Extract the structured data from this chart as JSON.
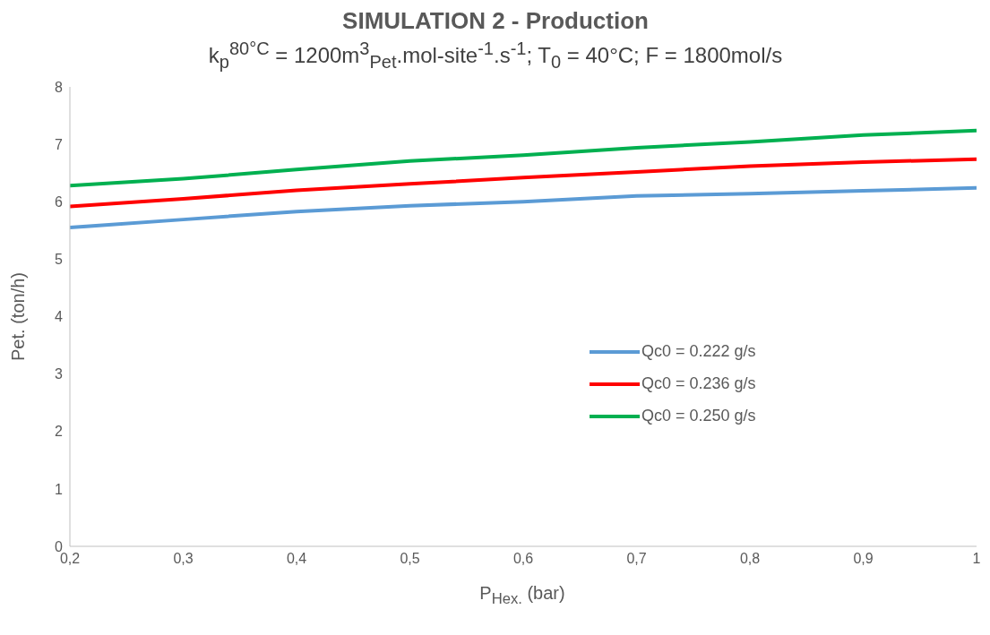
{
  "chart_data": {
    "type": "line",
    "title": "SIMULATION 2 - Production",
    "subtitle": "k$_{p}$$^{80°C}$ = 1200m$^{3}$$_{Pet}$.mol-site$^{-1}$.s$^{-1}$; T$_{0}$ = 40°C; F = 1800mol/s",
    "xlabel": "P$_{Hex.}$ (bar)",
    "ylabel": "Pet. (ton/h)",
    "x": [
      0.2,
      0.3,
      0.4,
      0.5,
      0.6,
      0.7,
      0.8,
      0.9,
      1
    ],
    "series": [
      {
        "name": "Qc0 = 0.222 g/s",
        "color": "#5b9bd5",
        "values": [
          5.55,
          5.69,
          5.83,
          5.93,
          6.0,
          6.1,
          6.14,
          6.19,
          6.24
        ]
      },
      {
        "name": "Qc0 = 0.236 g/s",
        "color": "#ff0000",
        "values": [
          5.92,
          6.05,
          6.2,
          6.31,
          6.42,
          6.52,
          6.62,
          6.69,
          6.74
        ]
      },
      {
        "name": "Qc0 = 0.250 g/s",
        "color": "#00b050",
        "values": [
          6.28,
          6.4,
          6.56,
          6.71,
          6.81,
          6.94,
          7.04,
          7.16,
          7.24
        ]
      }
    ],
    "xlim": [
      0.2,
      1
    ],
    "xticks": [
      {
        "value": 0.2,
        "label": "0,2"
      },
      {
        "value": 0.3,
        "label": "0,3"
      },
      {
        "value": 0.4,
        "label": "0,4"
      },
      {
        "value": 0.5,
        "label": "0,5"
      },
      {
        "value": 0.6,
        "label": "0,6"
      },
      {
        "value": 0.7,
        "label": "0,7"
      },
      {
        "value": 0.8,
        "label": "0,8"
      },
      {
        "value": 0.9,
        "label": "0,9"
      },
      1
    ],
    "ylim": [
      0,
      8
    ],
    "yticks": [
      0,
      1,
      2,
      3,
      4,
      5,
      6,
      7,
      8
    ],
    "grid": false,
    "legend": "right"
  }
}
